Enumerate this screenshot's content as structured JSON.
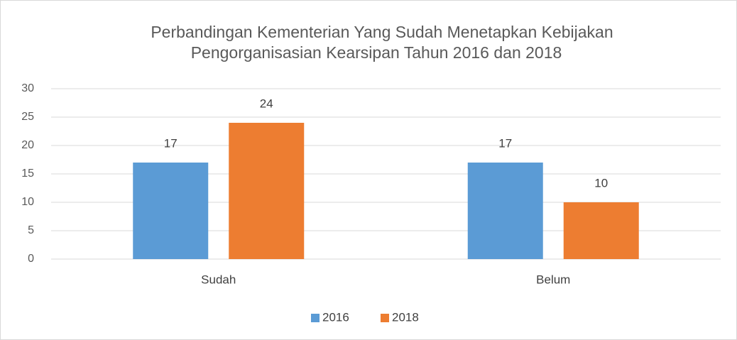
{
  "chart_data": {
    "type": "bar",
    "title": [
      "Perbandingan Kementerian Yang Sudah Menetapkan Kebijakan",
      "Pengorganisasian Kearsipan Tahun 2016 dan 2018"
    ],
    "categories": [
      "Sudah",
      "Belum"
    ],
    "series": [
      {
        "name": "2016",
        "color": "#5b9bd5",
        "values": [
          17,
          17
        ]
      },
      {
        "name": "2018",
        "color": "#ed7d31",
        "values": [
          24,
          10
        ]
      }
    ],
    "ylim": [
      0,
      30
    ],
    "yticks": [
      0,
      5,
      10,
      15,
      20,
      25,
      30
    ],
    "grid": true,
    "legend": "bottom"
  }
}
